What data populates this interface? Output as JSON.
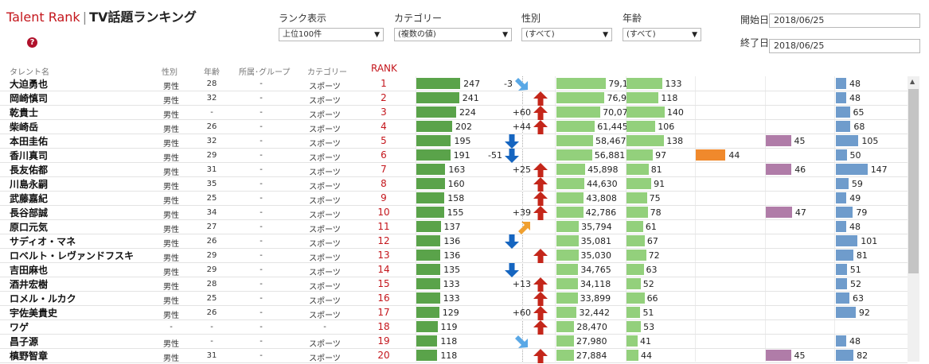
{
  "header": {
    "title_red": "Talent Rank",
    "title_sep": "|",
    "title_rest": "TV話題ランキング",
    "help": "?"
  },
  "filters": {
    "rank": {
      "label": "ランク表示",
      "value": "上位100件"
    },
    "category": {
      "label": "カテゴリー",
      "value": "(複数の値)"
    },
    "gender": {
      "label": "性別",
      "value": "(すべて)"
    },
    "age": {
      "label": "年齢",
      "value": "(すべて)"
    },
    "start": {
      "label": "開始日",
      "value": "2018/06/25"
    },
    "end": {
      "label": "終了日",
      "value": "2018/06/25"
    }
  },
  "columns": {
    "name": "タレント名",
    "gender": "性別",
    "age": "年齢",
    "agency": "所属･グループ",
    "category": "カテゴリー",
    "rank": "RANK"
  },
  "colors": {
    "green_dark": "#5aa34a",
    "green_light": "#93d07c",
    "orange": "#f0892c",
    "purple": "#b07ca8",
    "blue": "#6f9ccc",
    "arrow_up": "#c4261a",
    "arrow_down": "#1565c0",
    "arrow_light": "#5aa8e6",
    "arrow_orange": "#f0a030"
  },
  "rows": [
    {
      "name": "大迫勇也",
      "gender": "男性",
      "age": "28",
      "agency": "-",
      "category": "スポーツ",
      "rank": "1",
      "v1": 247,
      "change": "-3",
      "arrow": "light-down",
      "v2": 79176,
      "v2_label": "79,176",
      "v3": 133,
      "v4": null,
      "v5": null,
      "v6": 48
    },
    {
      "name": "岡崎慎司",
      "gender": "男性",
      "age": "32",
      "agency": "-",
      "category": "スポーツ",
      "rank": "2",
      "v1": 241,
      "change": "",
      "arrow": "up",
      "v2": 76917,
      "v2_label": "76,917",
      "v3": 118,
      "v4": null,
      "v5": null,
      "v6": 48
    },
    {
      "name": "乾貴士",
      "gender": "男性",
      "age": "-",
      "agency": "-",
      "category": "スポーツ",
      "rank": "3",
      "v1": 224,
      "change": "+60",
      "arrow": "up",
      "v2": 70079,
      "v2_label": "70,079",
      "v3": 140,
      "v4": null,
      "v5": null,
      "v6": 65
    },
    {
      "name": "柴崎岳",
      "gender": "男性",
      "age": "26",
      "agency": "-",
      "category": "スポーツ",
      "rank": "4",
      "v1": 202,
      "change": "+44",
      "arrow": "up",
      "v2": 61445,
      "v2_label": "61,445",
      "v3": 106,
      "v4": null,
      "v5": null,
      "v6": 68
    },
    {
      "name": "本田圭佑",
      "gender": "男性",
      "age": "32",
      "agency": "-",
      "category": "スポーツ",
      "rank": "5",
      "v1": 195,
      "change": "",
      "arrow": "down",
      "v2": 58467,
      "v2_label": "58,467",
      "v3": 138,
      "v4": null,
      "v5": 45,
      "v6": 105
    },
    {
      "name": "香川真司",
      "gender": "男性",
      "age": "29",
      "agency": "-",
      "category": "スポーツ",
      "rank": "6",
      "v1": 191,
      "change": "-51",
      "arrow": "down",
      "v2": 56881,
      "v2_label": "56,881",
      "v3": 97,
      "v4": 44,
      "v5": null,
      "v6": 50
    },
    {
      "name": "長友佑都",
      "gender": "男性",
      "age": "31",
      "agency": "-",
      "category": "スポーツ",
      "rank": "7",
      "v1": 163,
      "change": "+25",
      "arrow": "up",
      "v2": 45898,
      "v2_label": "45,898",
      "v3": 81,
      "v4": null,
      "v5": 46,
      "v6": 147
    },
    {
      "name": "川島永嗣",
      "gender": "男性",
      "age": "35",
      "agency": "-",
      "category": "スポーツ",
      "rank": "8",
      "v1": 160,
      "change": "",
      "arrow": "up",
      "v2": 44630,
      "v2_label": "44,630",
      "v3": 91,
      "v4": null,
      "v5": null,
      "v6": 59
    },
    {
      "name": "武藤嘉紀",
      "gender": "男性",
      "age": "25",
      "agency": "-",
      "category": "スポーツ",
      "rank": "9",
      "v1": 158,
      "change": "",
      "arrow": "up",
      "v2": 43808,
      "v2_label": "43,808",
      "v3": 75,
      "v4": null,
      "v5": null,
      "v6": 49
    },
    {
      "name": "長谷部誠",
      "gender": "男性",
      "age": "34",
      "agency": "-",
      "category": "スポーツ",
      "rank": "10",
      "v1": 155,
      "change": "+39",
      "arrow": "up",
      "v2": 42786,
      "v2_label": "42,786",
      "v3": 78,
      "v4": null,
      "v5": 47,
      "v6": 79
    },
    {
      "name": "原口元気",
      "gender": "男性",
      "age": "27",
      "agency": "-",
      "category": "スポーツ",
      "rank": "11",
      "v1": 137,
      "change": "",
      "arrow": "orange-up",
      "v2": 35794,
      "v2_label": "35,794",
      "v3": 61,
      "v4": null,
      "v5": null,
      "v6": 48
    },
    {
      "name": "サディオ・マネ",
      "gender": "男性",
      "age": "26",
      "agency": "-",
      "category": "スポーツ",
      "rank": "12",
      "v1": 136,
      "change": "",
      "arrow": "down",
      "v2": 35081,
      "v2_label": "35,081",
      "v3": 67,
      "v4": null,
      "v5": null,
      "v6": 101
    },
    {
      "name": "ロベルト・レヴァンドフスキ",
      "gender": "男性",
      "age": "29",
      "agency": "-",
      "category": "スポーツ",
      "rank": "13",
      "v1": 136,
      "change": "",
      "arrow": "up",
      "v2": 35030,
      "v2_label": "35,030",
      "v3": 72,
      "v4": null,
      "v5": null,
      "v6": 81
    },
    {
      "name": "吉田麻也",
      "gender": "男性",
      "age": "29",
      "agency": "-",
      "category": "スポーツ",
      "rank": "14",
      "v1": 135,
      "change": "",
      "arrow": "down",
      "v2": 34765,
      "v2_label": "34,765",
      "v3": 63,
      "v4": null,
      "v5": null,
      "v6": 51
    },
    {
      "name": "酒井宏樹",
      "gender": "男性",
      "age": "28",
      "agency": "-",
      "category": "スポーツ",
      "rank": "15",
      "v1": 133,
      "change": "+13",
      "arrow": "up",
      "v2": 34118,
      "v2_label": "34,118",
      "v3": 52,
      "v4": null,
      "v5": null,
      "v6": 52
    },
    {
      "name": "ロメル・ルカク",
      "gender": "男性",
      "age": "25",
      "agency": "-",
      "category": "スポーツ",
      "rank": "16",
      "v1": 133,
      "change": "",
      "arrow": "up",
      "v2": 33899,
      "v2_label": "33,899",
      "v3": 66,
      "v4": null,
      "v5": null,
      "v6": 63
    },
    {
      "name": "宇佐美貴史",
      "gender": "男性",
      "age": "26",
      "agency": "-",
      "category": "スポーツ",
      "rank": "17",
      "v1": 129,
      "change": "+60",
      "arrow": "up",
      "v2": 32442,
      "v2_label": "32,442",
      "v3": 51,
      "v4": null,
      "v5": null,
      "v6": 92
    },
    {
      "name": "ワゲ",
      "gender": "-",
      "age": "-",
      "agency": "-",
      "category": "-",
      "rank": "18",
      "v1": 119,
      "change": "",
      "arrow": "up",
      "v2": 28470,
      "v2_label": "28,470",
      "v3": 53,
      "v4": null,
      "v5": null,
      "v6": null
    },
    {
      "name": "昌子源",
      "gender": "男性",
      "age": "-",
      "agency": "-",
      "category": "スポーツ",
      "rank": "19",
      "v1": 118,
      "change": "",
      "arrow": "light-down",
      "v2": 27980,
      "v2_label": "27,980",
      "v3": 41,
      "v4": null,
      "v5": null,
      "v6": 48
    },
    {
      "name": "槙野智章",
      "gender": "男性",
      "age": "31",
      "agency": "-",
      "category": "スポーツ",
      "rank": "20",
      "v1": 118,
      "change": "",
      "arrow": "up",
      "v2": 27884,
      "v2_label": "27,884",
      "v3": 44,
      "v4": null,
      "v5": 45,
      "v6": 82
    }
  ]
}
